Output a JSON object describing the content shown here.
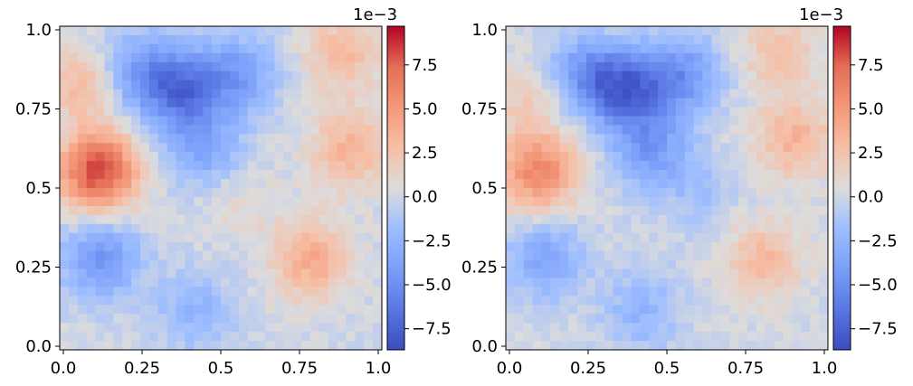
{
  "chart_data": [
    {
      "type": "heatmap",
      "title": "",
      "xlabel": "",
      "ylabel": "",
      "xlim": [
        0.0,
        1.0
      ],
      "ylim": [
        0.0,
        1.0
      ],
      "x_ticks": [
        "0.0",
        "0.25",
        "0.5",
        "0.75",
        "1.0"
      ],
      "y_ticks": [
        "0.0",
        "0.25",
        "0.5",
        "0.75",
        "1.0"
      ],
      "colormap": "coolwarm",
      "colorbar": {
        "offset_label": "1e−3",
        "range": [
          -8.7,
          9.7
        ],
        "ticks": [
          -7.5,
          -5.0,
          -2.5,
          0.0,
          2.5,
          5.0,
          7.5
        ],
        "tick_labels": [
          "−7.5",
          "−5.0",
          "−2.5",
          "0.0",
          "2.5",
          "5.0",
          "7.5"
        ]
      },
      "field_features": [
        {
          "x": 0.12,
          "y": 0.55,
          "value": 8.5
        },
        {
          "x": 0.07,
          "y": 0.82,
          "value": 3.0
        },
        {
          "x": 0.38,
          "y": 0.8,
          "value": -6.0
        },
        {
          "x": 0.25,
          "y": 0.86,
          "value": -4.0
        },
        {
          "x": 0.55,
          "y": 0.85,
          "value": -4.0
        },
        {
          "x": 0.45,
          "y": 0.62,
          "value": -3.5
        },
        {
          "x": 0.13,
          "y": 0.28,
          "value": -4.5
        },
        {
          "x": 0.78,
          "y": 0.28,
          "value": 4.0
        },
        {
          "x": 0.9,
          "y": 0.62,
          "value": 3.5
        },
        {
          "x": 0.88,
          "y": 0.92,
          "value": 3.0
        },
        {
          "x": 0.55,
          "y": 0.48,
          "value": 1.0
        },
        {
          "x": 0.42,
          "y": 0.12,
          "value": -2.5
        }
      ]
    },
    {
      "type": "heatmap",
      "title": "",
      "xlabel": "",
      "ylabel": "",
      "xlim": [
        0.0,
        1.0
      ],
      "ylim": [
        0.0,
        1.0
      ],
      "x_ticks": [
        "0.0",
        "0.25",
        "0.5",
        "0.75",
        "1.0"
      ],
      "y_ticks": [
        "0.0",
        "0.25",
        "0.5",
        "0.75",
        "1.0"
      ],
      "colormap": "coolwarm",
      "colorbar": {
        "offset_label": "1e−3",
        "range": [
          -8.7,
          9.7
        ],
        "ticks": [
          -7.5,
          -5.0,
          -2.5,
          0.0,
          2.5,
          5.0,
          7.5
        ],
        "tick_labels": [
          "−7.5",
          "−5.0",
          "−2.5",
          "0.0",
          "2.5",
          "5.0",
          "7.5"
        ]
      },
      "field_features": [
        {
          "x": 0.1,
          "y": 0.55,
          "value": 6.0
        },
        {
          "x": 0.07,
          "y": 0.78,
          "value": 2.0
        },
        {
          "x": 0.38,
          "y": 0.8,
          "value": -6.5
        },
        {
          "x": 0.25,
          "y": 0.85,
          "value": -4.5
        },
        {
          "x": 0.55,
          "y": 0.85,
          "value": -4.5
        },
        {
          "x": 0.45,
          "y": 0.62,
          "value": -4.0
        },
        {
          "x": 0.12,
          "y": 0.28,
          "value": -3.5
        },
        {
          "x": 0.8,
          "y": 0.28,
          "value": 3.0
        },
        {
          "x": 0.9,
          "y": 0.65,
          "value": 3.5
        },
        {
          "x": 0.85,
          "y": 0.92,
          "value": 2.5
        },
        {
          "x": 0.6,
          "y": 0.48,
          "value": -1.5
        },
        {
          "x": 0.42,
          "y": 0.12,
          "value": -2.5
        }
      ]
    }
  ]
}
